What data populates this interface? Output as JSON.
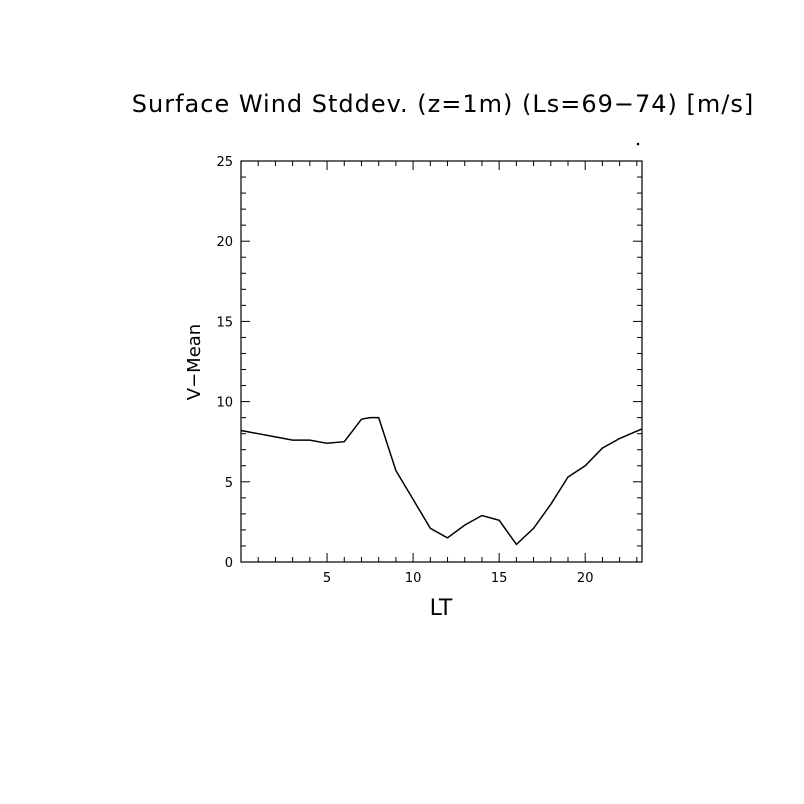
{
  "chart_data": {
    "type": "line",
    "title": "Surface Wind Stddev. (z=1m) (Ls=69−74) [m/s]",
    "xlabel": "LT",
    "ylabel": "V−Mean",
    "xlim": [
      0,
      23.3
    ],
    "ylim": [
      0,
      25
    ],
    "x_ticks": [
      5,
      10,
      15,
      20
    ],
    "y_ticks": [
      0,
      5,
      10,
      15,
      20,
      25
    ],
    "grid": false,
    "series": [
      {
        "x": [
          0,
          1,
          2,
          3,
          4,
          5,
          6,
          7,
          7.5,
          8,
          9,
          10,
          11,
          12,
          13,
          14,
          15,
          16,
          17,
          18,
          19,
          20,
          21,
          22,
          23.3
        ],
        "values": [
          8.2,
          8.0,
          7.8,
          7.6,
          7.6,
          7.4,
          7.5,
          8.9,
          9.0,
          9.0,
          5.7,
          3.9,
          2.1,
          1.5,
          2.3,
          2.9,
          2.6,
          1.1,
          2.1,
          3.6,
          5.3,
          6.0,
          7.1,
          7.7,
          8.3
        ]
      }
    ]
  }
}
